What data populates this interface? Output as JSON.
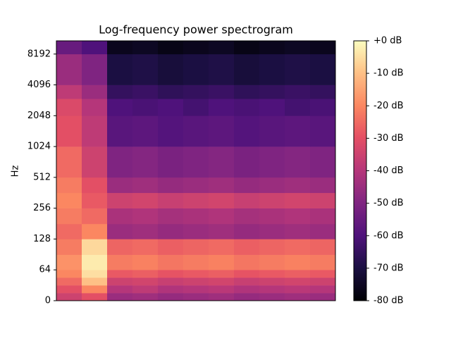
{
  "chart_data": {
    "type": "heatmap",
    "title": "Log-frequency power spectrogram",
    "ylabel": "Hz",
    "yscale": "symlog",
    "linthresh": 64,
    "ylim": [
      0,
      11025
    ],
    "yticks": [
      0,
      64,
      128,
      256,
      512,
      1024,
      2048,
      4096,
      8192
    ],
    "colormap": "magma",
    "zlim": [
      -80,
      0
    ],
    "zticks": [
      {
        "value": 0,
        "label": "+0 dB"
      },
      {
        "value": -10,
        "label": "-10 dB"
      },
      {
        "value": -20,
        "label": "-20 dB"
      },
      {
        "value": -30,
        "label": "-30 dB"
      },
      {
        "value": -40,
        "label": "-40 dB"
      },
      {
        "value": -50,
        "label": "-50 dB"
      },
      {
        "value": -60,
        "label": "-60 dB"
      },
      {
        "value": -70,
        "label": "-70 dB"
      },
      {
        "value": -80,
        "label": "-80 dB"
      }
    ],
    "ybins": [
      0,
      16,
      32,
      48,
      64,
      90,
      128,
      180,
      256,
      362,
      512,
      1024,
      2048,
      3000,
      4096,
      8192,
      11025
    ],
    "z": [
      [
        -35,
        -30,
        -45,
        -44,
        -46,
        -45,
        -44,
        -46,
        -45,
        -44,
        -45
      ],
      [
        -30,
        -20,
        -40,
        -38,
        -41,
        -40,
        -39,
        -41,
        -40,
        -39,
        -40
      ],
      [
        -25,
        -10,
        -35,
        -34,
        -36,
        -35,
        -34,
        -36,
        -35,
        -34,
        -35
      ],
      [
        -20,
        -5,
        -28,
        -27,
        -29,
        -28,
        -27,
        -29,
        -28,
        -27,
        -28
      ],
      [
        -18,
        -3,
        -22,
        -21,
        -23,
        -22,
        -21,
        -23,
        -22,
        -21,
        -22
      ],
      [
        -22,
        -6,
        -26,
        -25,
        -27,
        -26,
        -25,
        -27,
        -26,
        -25,
        -26
      ],
      [
        -25,
        -20,
        -45,
        -44,
        -46,
        -45,
        -44,
        -46,
        -45,
        -44,
        -45
      ],
      [
        -22,
        -25,
        -42,
        -41,
        -43,
        -42,
        -41,
        -43,
        -42,
        -41,
        -42
      ],
      [
        -20,
        -28,
        -35,
        -34,
        -36,
        -35,
        -34,
        -36,
        -35,
        -34,
        -35
      ],
      [
        -22,
        -30,
        -45,
        -44,
        -46,
        -45,
        -44,
        -46,
        -45,
        -44,
        -45
      ],
      [
        -25,
        -35,
        -50,
        -49,
        -51,
        -50,
        -49,
        -51,
        -50,
        -49,
        -50
      ],
      [
        -30,
        -38,
        -58,
        -57,
        -59,
        -58,
        -57,
        -59,
        -58,
        -57,
        -58
      ],
      [
        -32,
        -40,
        -60,
        -61,
        -60,
        -62,
        -60,
        -61,
        -60,
        -62,
        -61
      ],
      [
        -38,
        -45,
        -65,
        -64,
        -66,
        -65,
        -64,
        -66,
        -65,
        -64,
        -65
      ],
      [
        -45,
        -50,
        -70,
        -69,
        -71,
        -70,
        -69,
        -71,
        -70,
        -69,
        -70
      ],
      [
        -55,
        -60,
        -76,
        -75,
        -77,
        -76,
        -75,
        -77,
        -76,
        -75,
        -76
      ]
    ]
  }
}
